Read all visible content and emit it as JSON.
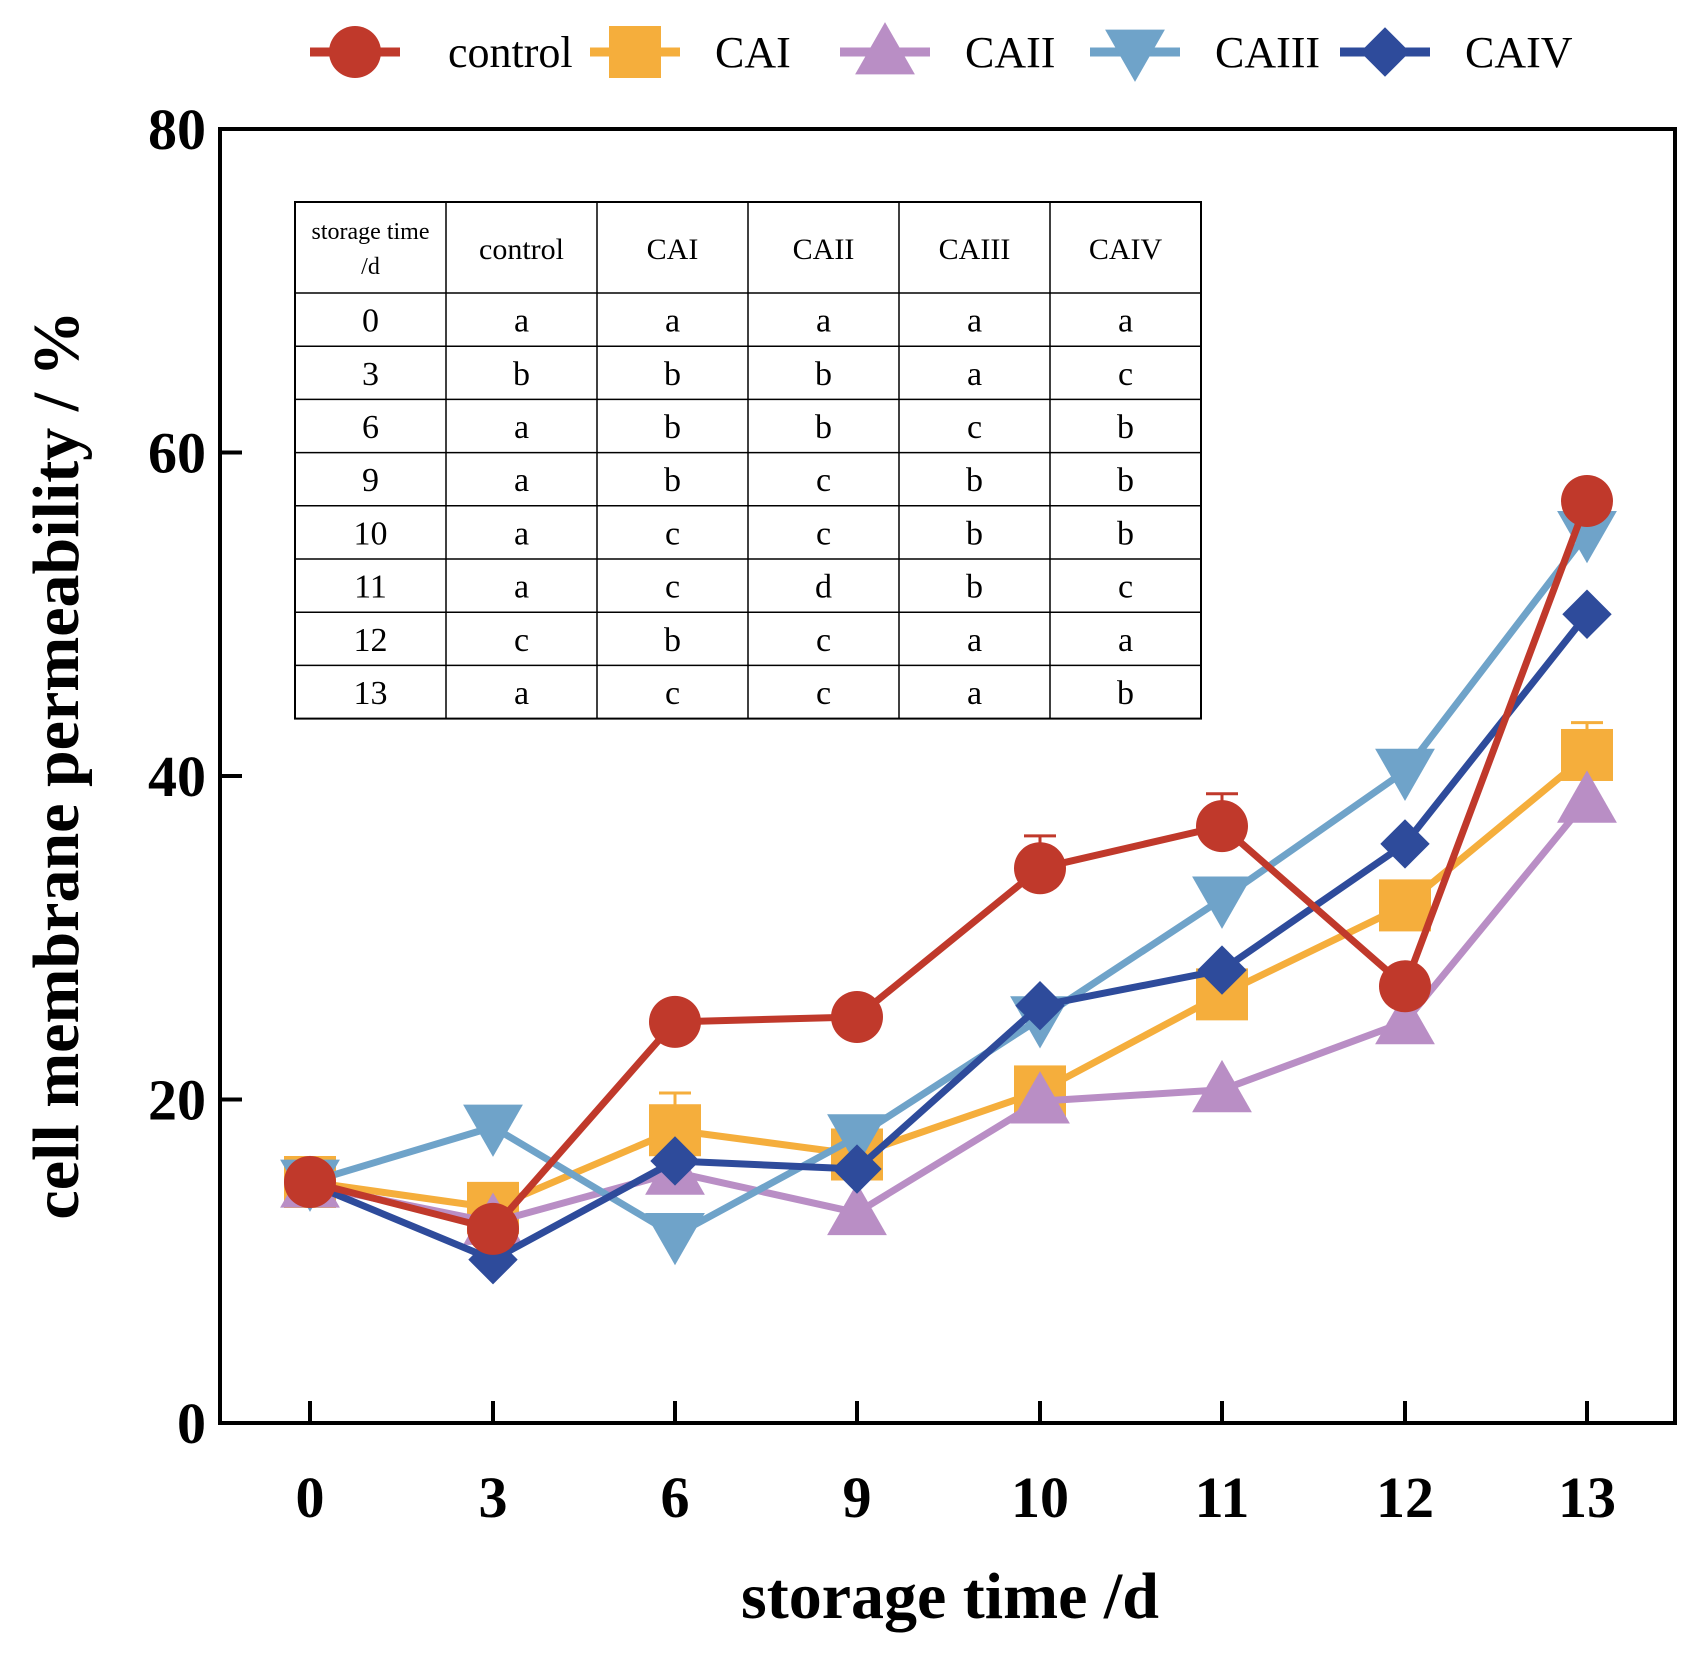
{
  "chart_data": {
    "type": "line",
    "xlabel": "storage time /d",
    "ylabel": "cell membrane permeability / %",
    "categories": [
      "0",
      "3",
      "6",
      "9",
      "10",
      "11",
      "12",
      "13"
    ],
    "ylim": [
      0,
      80
    ],
    "yticks": [
      "0",
      "20",
      "40",
      "60",
      "80"
    ],
    "legend_position": "top",
    "series": [
      {
        "name": "control",
        "color": "#c0392b",
        "marker": "circle",
        "values": [
          14.9,
          12.0,
          24.8,
          25.1,
          34.3,
          36.9,
          27.0,
          57.0
        ],
        "errors": [
          0,
          0,
          0,
          0,
          2.0,
          2.0,
          0,
          0
        ]
      },
      {
        "name": "CAI",
        "color": "#f5ae3c",
        "marker": "square",
        "values": [
          14.9,
          13.3,
          18.1,
          16.6,
          20.5,
          26.5,
          32.0,
          41.3
        ],
        "errors": [
          0,
          0,
          2.3,
          0,
          0,
          0,
          0,
          2.0
        ]
      },
      {
        "name": "CAII",
        "color": "#b98ec5",
        "marker": "triangle-up",
        "values": [
          14.7,
          12.4,
          15.5,
          13.0,
          19.9,
          20.6,
          24.8,
          38.5
        ],
        "errors": [
          0,
          0,
          0,
          0,
          0,
          0,
          0,
          0
        ]
      },
      {
        "name": "CAIII",
        "color": "#6fa3c9",
        "marker": "triangle-down",
        "values": [
          14.9,
          18.3,
          11.6,
          17.7,
          25.0,
          32.4,
          40.3,
          55.0
        ],
        "errors": [
          0,
          0,
          0,
          0,
          0,
          0,
          0,
          0
        ]
      },
      {
        "name": "CAIV",
        "color": "#2e4b9b",
        "marker": "diamond",
        "values": [
          14.8,
          10.1,
          16.2,
          15.7,
          25.8,
          28.0,
          35.8,
          50.0
        ],
        "errors": [
          0,
          0,
          0,
          0,
          0,
          0,
          0,
          0
        ]
      }
    ]
  },
  "sig_table": {
    "header_line1": "storage time",
    "header_line2": "/d",
    "columns": [
      "control",
      "CAI",
      "CAII",
      "CAIII",
      "CAIV"
    ],
    "rows": [
      {
        "day": "0",
        "letters": [
          "a",
          "a",
          "a",
          "a",
          "a"
        ]
      },
      {
        "day": "3",
        "letters": [
          "b",
          "b",
          "b",
          "a",
          "c"
        ]
      },
      {
        "day": "6",
        "letters": [
          "a",
          "b",
          "b",
          "c",
          "b"
        ]
      },
      {
        "day": "9",
        "letters": [
          "a",
          "b",
          "c",
          "b",
          "b"
        ]
      },
      {
        "day": "10",
        "letters": [
          "a",
          "c",
          "c",
          "b",
          "b"
        ]
      },
      {
        "day": "11",
        "letters": [
          "a",
          "c",
          "d",
          "b",
          "c"
        ]
      },
      {
        "day": "12",
        "letters": [
          "c",
          "b",
          "c",
          "a",
          "a"
        ]
      },
      {
        "day": "13",
        "letters": [
          "a",
          "c",
          "c",
          "a",
          "b"
        ]
      }
    ]
  }
}
